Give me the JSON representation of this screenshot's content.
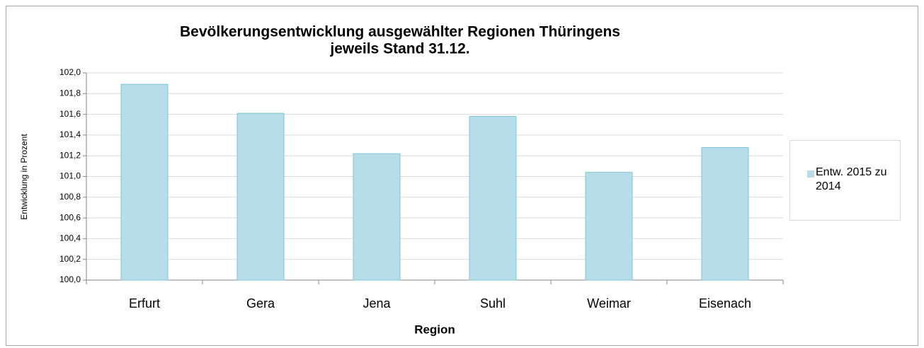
{
  "chart_data": {
    "type": "bar",
    "title": "Bevölkerungsentwicklung ausgewählter Regionen Thüringens",
    "subtitle": "jeweils Stand 31.12.",
    "x_label": "Region",
    "y_label": "Entwicklung in Prozent",
    "categories": [
      "Erfurt",
      "Gera",
      "Jena",
      "Suhl",
      "Weimar",
      "Eisenach"
    ],
    "series": [
      {
        "name": "Entw. 2015 zu 2014",
        "color": "#b7dde8",
        "values": [
          101.89,
          101.61,
          101.22,
          101.58,
          101.04,
          101.28
        ]
      }
    ],
    "ylim": [
      100,
      102
    ],
    "yticks": [
      {
        "value": 100,
        "label": "100,0"
      },
      {
        "value": 100.2,
        "label": "100,2"
      },
      {
        "value": 100.4,
        "label": "100,4"
      },
      {
        "value": 100.6,
        "label": "100,6"
      },
      {
        "value": 100.8,
        "label": "100,8"
      },
      {
        "value": 101,
        "label": "101,0"
      },
      {
        "value": 101.2,
        "label": "101,2"
      },
      {
        "value": 101.4,
        "label": "101,4"
      },
      {
        "value": 101.6,
        "label": "101,6"
      },
      {
        "value": 101.8,
        "label": "101,8"
      },
      {
        "value": 102,
        "label": "102,0"
      }
    ],
    "grid": true,
    "legend": "right"
  }
}
